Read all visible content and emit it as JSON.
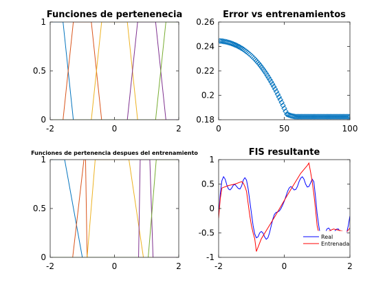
{
  "chart_data": [
    {
      "type": "line",
      "title": "Funciones de pertenenecia",
      "xlim": [
        -2,
        2
      ],
      "ylim": [
        0,
        1
      ],
      "xticks": [
        "-2",
        "0",
        "2"
      ],
      "yticks": [
        "0",
        "0.5",
        "1"
      ],
      "series": [
        {
          "color": "#0072BD",
          "x": [
            -2.0,
            -1.6,
            -1.28,
            2.0
          ],
          "y": [
            1,
            1,
            0,
            0
          ]
        },
        {
          "color": "#D95319",
          "x": [
            -2.0,
            -1.6,
            -1.28,
            -0.72,
            -0.4,
            2.0
          ],
          "y": [
            0,
            0,
            1,
            1,
            0,
            0
          ]
        },
        {
          "color": "#EDB120",
          "x": [
            -2.0,
            -0.72,
            -0.4,
            0.4,
            0.72,
            2.0
          ],
          "y": [
            0,
            0,
            1,
            1,
            0,
            0
          ]
        },
        {
          "color": "#7E2F8E",
          "x": [
            -2.0,
            0.4,
            0.72,
            1.28,
            1.6,
            2.0
          ],
          "y": [
            0,
            0,
            1,
            1,
            0,
            0
          ]
        },
        {
          "color": "#77AC30",
          "x": [
            -2.0,
            1.28,
            1.6,
            2.0
          ],
          "y": [
            0,
            0,
            1,
            1
          ]
        }
      ]
    },
    {
      "type": "scatter",
      "title": "Error vs entrenamientos",
      "xlim": [
        0,
        100
      ],
      "ylim": [
        0.18,
        0.26
      ],
      "xticks": [
        "0",
        "50",
        "100"
      ],
      "yticks": [
        "0.18",
        "0.2",
        "0.22",
        "0.24",
        "0.26"
      ],
      "marker": "diamond",
      "color": "#0072BD",
      "series": [
        {
          "x": [
            1,
            2,
            3,
            4,
            5,
            6,
            7,
            8,
            9,
            10,
            11,
            12,
            13,
            14,
            15,
            16,
            17,
            18,
            19,
            20,
            21,
            22,
            23,
            24,
            25,
            26,
            27,
            28,
            29,
            30,
            31,
            32,
            33,
            34,
            35,
            36,
            37,
            38,
            39,
            40,
            41,
            42,
            43,
            44,
            45,
            46,
            47,
            48,
            49,
            50,
            51,
            52,
            53,
            54,
            55,
            56,
            57,
            58,
            59,
            60,
            61,
            62,
            63,
            64,
            65,
            66,
            67,
            68,
            69,
            70,
            71,
            72,
            73,
            74,
            75,
            76,
            77,
            78,
            79,
            80,
            81,
            82,
            83,
            84,
            85,
            86,
            87,
            88,
            89,
            90,
            91,
            92,
            93,
            94,
            95,
            96,
            97,
            98,
            99,
            100
          ],
          "y": [
            0.2445,
            0.2444,
            0.2443,
            0.2441,
            0.2439,
            0.2437,
            0.2434,
            0.2431,
            0.2428,
            0.2424,
            0.242,
            0.2415,
            0.2411,
            0.2406,
            0.24,
            0.2395,
            0.2388,
            0.2382,
            0.2375,
            0.2367,
            0.2359,
            0.2351,
            0.2342,
            0.2333,
            0.2323,
            0.2313,
            0.2302,
            0.2291,
            0.2279,
            0.2267,
            0.2254,
            0.224,
            0.2226,
            0.2211,
            0.2196,
            0.218,
            0.2163,
            0.2146,
            0.2128,
            0.211,
            0.2091,
            0.2071,
            0.2051,
            0.203,
            0.2008,
            0.1986,
            0.1964,
            0.1941,
            0.1917,
            0.1893,
            0.1869,
            0.1845,
            0.1841,
            0.1837,
            0.1833,
            0.183,
            0.1828,
            0.1826,
            0.1825,
            0.1825,
            0.1825,
            0.1825,
            0.1825,
            0.1825,
            0.1825,
            0.1825,
            0.1825,
            0.1825,
            0.1825,
            0.1825,
            0.1825,
            0.1825,
            0.1825,
            0.1825,
            0.1825,
            0.1825,
            0.1825,
            0.1825,
            0.1825,
            0.1825,
            0.1825,
            0.1825,
            0.1825,
            0.1825,
            0.1825,
            0.1825,
            0.1825,
            0.1825,
            0.1825,
            0.1825,
            0.1825,
            0.1825,
            0.1825,
            0.1825,
            0.1825,
            0.1825,
            0.1825,
            0.1825,
            0.1825,
            0.1825
          ]
        }
      ]
    },
    {
      "type": "line",
      "title": "Funciones de pertenencia despues del entrenamiento",
      "xlim": [
        -2,
        2
      ],
      "ylim": [
        0,
        1
      ],
      "xticks": [
        "-2",
        "0",
        "2"
      ],
      "yticks": [
        "0",
        "0.5",
        "1"
      ],
      "series": [
        {
          "color": "#0072BD",
          "x": [
            -2.0,
            -1.55,
            -1.0,
            2.0
          ],
          "y": [
            1,
            1,
            0,
            0
          ]
        },
        {
          "color": "#D95319",
          "x": [
            -2.0,
            -1.3,
            -0.95,
            -0.9,
            -0.85,
            2.0
          ],
          "y": [
            0,
            0,
            1,
            1,
            0,
            0
          ]
        },
        {
          "color": "#EDB120",
          "x": [
            -2.0,
            -0.85,
            -0.6,
            0.45,
            0.9,
            2.0
          ],
          "y": [
            0,
            0,
            1,
            1,
            0,
            0
          ]
        },
        {
          "color": "#7E2F8E",
          "x": [
            -2.0,
            0.75,
            0.8,
            1.1,
            1.2,
            2.0
          ],
          "y": [
            0,
            0,
            1,
            1,
            0,
            0
          ]
        },
        {
          "color": "#77AC30",
          "x": [
            -2.0,
            1.05,
            1.3,
            2.0
          ],
          "y": [
            0,
            0,
            1,
            1
          ]
        }
      ]
    },
    {
      "type": "line",
      "title": "FIS resultante",
      "xlim": [
        -2,
        2
      ],
      "ylim": [
        -1,
        1
      ],
      "xticks": [
        "-2",
        "0",
        "2"
      ],
      "yticks": [
        "-1",
        "-0.5",
        "0",
        "0.5",
        "1"
      ],
      "legend": {
        "position": "bottom-right",
        "entries": [
          "Real",
          "Entrenada"
        ]
      },
      "series": [
        {
          "name": "Real",
          "color": "#0000FF",
          "x": [
            -2.0,
            -1.95,
            -1.9,
            -1.85,
            -1.8,
            -1.75,
            -1.7,
            -1.65,
            -1.6,
            -1.55,
            -1.5,
            -1.45,
            -1.4,
            -1.35,
            -1.3,
            -1.25,
            -1.2,
            -1.15,
            -1.1,
            -1.05,
            -1.0,
            -0.95,
            -0.9,
            -0.85,
            -0.8,
            -0.75,
            -0.7,
            -0.65,
            -0.6,
            -0.55,
            -0.5,
            -0.45,
            -0.4,
            -0.35,
            -0.3,
            -0.25,
            -0.2,
            -0.15,
            -0.1,
            -0.05,
            0.0,
            0.05,
            0.1,
            0.15,
            0.2,
            0.25,
            0.3,
            0.35,
            0.4,
            0.45,
            0.5,
            0.55,
            0.6,
            0.65,
            0.7,
            0.75,
            0.8,
            0.85,
            0.9,
            0.95,
            1.0,
            1.05,
            1.1,
            1.15,
            1.2,
            1.25,
            1.3,
            1.35,
            1.4,
            1.45,
            1.5,
            1.55,
            1.6,
            1.65,
            1.7,
            1.75,
            1.8,
            1.85,
            1.9,
            1.95,
            2.0
          ],
          "y": [
            -0.15,
            0.3,
            0.57,
            0.65,
            0.6,
            0.48,
            0.4,
            0.38,
            0.42,
            0.48,
            0.49,
            0.45,
            0.41,
            0.4,
            0.46,
            0.58,
            0.63,
            0.58,
            0.4,
            0.15,
            -0.1,
            -0.35,
            -0.52,
            -0.6,
            -0.58,
            -0.5,
            -0.47,
            -0.5,
            -0.58,
            -0.63,
            -0.6,
            -0.5,
            -0.36,
            -0.22,
            -0.12,
            -0.08,
            -0.07,
            -0.05,
            0.0,
            0.07,
            0.15,
            0.25,
            0.35,
            0.42,
            0.45,
            0.42,
            0.38,
            0.39,
            0.45,
            0.55,
            0.62,
            0.65,
            0.6,
            0.5,
            0.44,
            0.45,
            0.52,
            0.6,
            0.55,
            0.25,
            -0.1,
            -0.35,
            -0.55,
            -0.62,
            -0.58,
            -0.5,
            -0.42,
            -0.4,
            -0.44,
            -0.5,
            -0.5,
            -0.45,
            -0.42,
            -0.42,
            -0.48,
            -0.55,
            -0.62,
            -0.62,
            -0.5,
            -0.35,
            -0.15
          ]
        },
        {
          "name": "Entrenada",
          "color": "#FF0000",
          "x": [
            -2.0,
            -1.95,
            -1.9,
            -1.7,
            -1.5,
            -1.3,
            -1.25,
            -1.2,
            -1.15,
            -1.1,
            -1.05,
            -1.0,
            -0.95,
            -0.9,
            -0.85,
            -0.7,
            -0.5,
            -0.3,
            -0.1,
            0.1,
            0.3,
            0.5,
            0.7,
            0.75,
            0.8,
            0.85,
            0.9,
            0.95,
            1.0,
            1.05,
            1.1,
            1.15,
            1.2,
            1.3,
            1.5,
            1.7,
            1.9,
            2.0
          ],
          "y": [
            -0.2,
            0.2,
            0.42,
            0.47,
            0.5,
            0.55,
            0.52,
            0.45,
            0.35,
            0.1,
            -0.15,
            -0.35,
            -0.5,
            -0.62,
            -0.88,
            -0.62,
            -0.4,
            -0.18,
            0.05,
            0.28,
            0.5,
            0.72,
            0.88,
            0.93,
            0.75,
            0.55,
            0.3,
            0.0,
            -0.35,
            -0.5,
            -0.55,
            -0.6,
            -0.55,
            -0.48,
            -0.42,
            -0.45,
            -0.48,
            -0.4
          ]
        }
      ]
    }
  ]
}
